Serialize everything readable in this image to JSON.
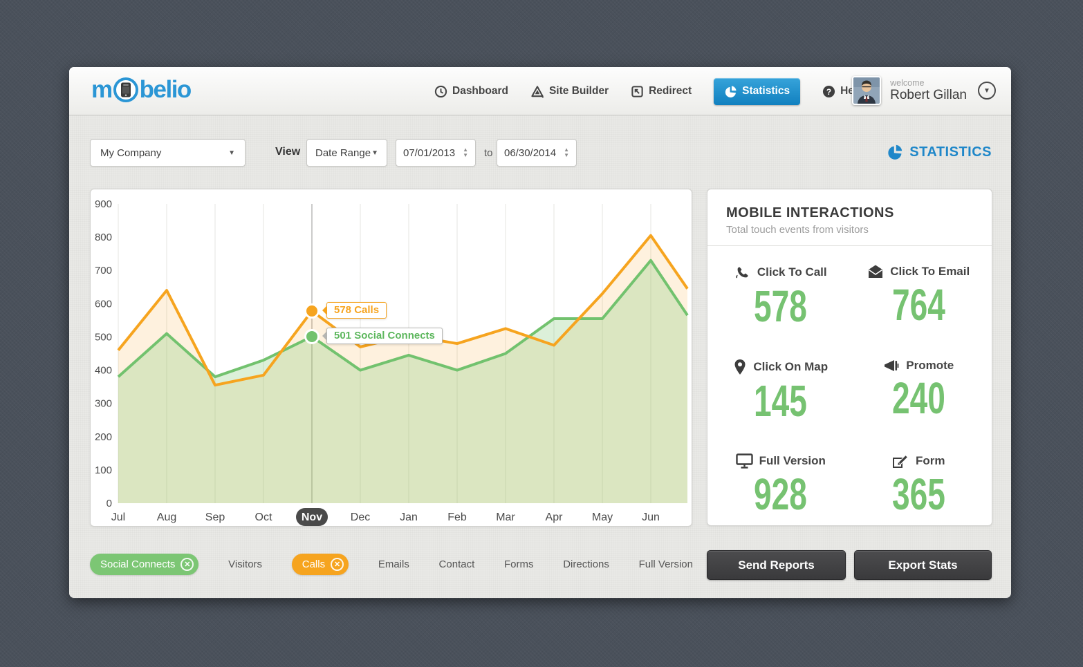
{
  "colors": {
    "accent_blue": "#1f87c9",
    "nav_active_blue": "#1180bf",
    "green": "#76c271",
    "orange": "#f6a41f",
    "dark_button": "#3f3f41",
    "pill_green": "#7cc674",
    "pill_orange": "#f6a41f"
  },
  "header": {
    "logo": {
      "name": "mobelio",
      "prefix": "m",
      "suffix": "belio"
    },
    "nav": [
      {
        "label": "Dashboard",
        "icon": "dashboard-clock-icon",
        "active": false
      },
      {
        "label": "Site Builder",
        "icon": "site-builder-icon",
        "active": false
      },
      {
        "label": "Redirect",
        "icon": "redirect-icon",
        "active": false
      },
      {
        "label": "Statistics",
        "icon": "statistics-pie-icon",
        "active": true
      },
      {
        "label": "Help",
        "icon": "help-icon",
        "active": false
      }
    ],
    "user": {
      "welcome": "welcome",
      "name": "Robert Gillan"
    }
  },
  "filters": {
    "company": "My Company",
    "view_label": "View",
    "range_type": "Date Range",
    "date_from": "07/01/2013",
    "to_label": "to",
    "date_to": "06/30/2014",
    "stats_title": "STATISTICS"
  },
  "chart_data": {
    "type": "area",
    "categories": [
      "Jul",
      "Aug",
      "Sep",
      "Oct",
      "Nov",
      "Dec",
      "Jan",
      "Feb",
      "Mar",
      "Apr",
      "May",
      "Jun"
    ],
    "series": [
      {
        "name": "Calls",
        "color": "#f6a41f",
        "fill": "rgba(246,164,31,0.15)",
        "values": [
          460,
          640,
          355,
          385,
          578,
          470,
          505,
          480,
          525,
          475,
          630,
          805
        ],
        "edge_value": 645
      },
      {
        "name": "Social Connects",
        "color": "#72c26e",
        "fill": "rgba(124,198,116,0.27)",
        "values": [
          380,
          510,
          380,
          430,
          501,
          400,
          445,
          400,
          450,
          555,
          555,
          730
        ],
        "edge_value": 565
      }
    ],
    "title": "",
    "xlabel": "",
    "ylabel": "",
    "ylim": [
      0,
      900
    ],
    "yticks": [
      0,
      100,
      200,
      300,
      400,
      500,
      600,
      700,
      800,
      900
    ],
    "grid": "vertical-only",
    "highlight_category": "Nov",
    "tooltips": [
      {
        "series": "Calls",
        "category": "Nov",
        "value": 578,
        "label": "578 Calls"
      },
      {
        "series": "Social Connects",
        "category": "Nov",
        "value": 501,
        "label": "501 Social Connects"
      }
    ],
    "legend_position": "bottom"
  },
  "panel": {
    "title": "MOBILE INTERACTIONS",
    "subtitle": "Total touch events from visitors",
    "stats": [
      {
        "label": "Click To Call",
        "value": "578",
        "icon": "phone-icon"
      },
      {
        "label": "Click To Email",
        "value": "764",
        "icon": "email-icon"
      },
      {
        "label": "Click On Map",
        "value": "145",
        "icon": "map-pin-icon"
      },
      {
        "label": "Promote",
        "value": "240",
        "icon": "megaphone-icon"
      },
      {
        "label": "Full Version",
        "value": "928",
        "icon": "monitor-icon"
      },
      {
        "label": "Form",
        "value": "365",
        "icon": "form-pencil-icon"
      }
    ]
  },
  "legend": {
    "items": [
      {
        "label": "Social Connects",
        "active": true,
        "color": "#7cc674"
      },
      {
        "label": "Visitors",
        "active": false,
        "color": ""
      },
      {
        "label": "Calls",
        "active": true,
        "color": "#f6a41f"
      },
      {
        "label": "Emails",
        "active": false,
        "color": ""
      },
      {
        "label": "Contact",
        "active": false,
        "color": ""
      },
      {
        "label": "Forms",
        "active": false,
        "color": ""
      },
      {
        "label": "Directions",
        "active": false,
        "color": ""
      },
      {
        "label": "Full Version",
        "active": false,
        "color": ""
      }
    ]
  },
  "actions": {
    "send_reports": "Send Reports",
    "export_stats": "Export Stats"
  }
}
